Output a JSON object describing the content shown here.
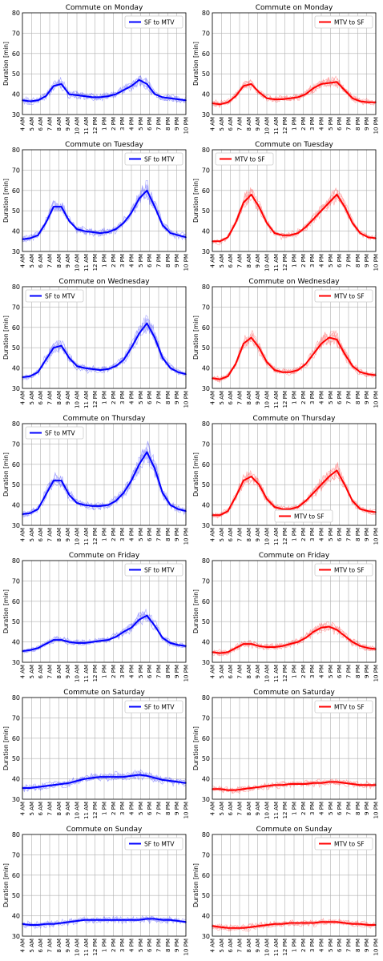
{
  "chart_data": [
    {
      "type": "line",
      "title": "Commute on Monday",
      "ylabel": "Duration [min]",
      "ylim": [
        30,
        80
      ],
      "legend": "top-right",
      "series": [
        {
          "name": "SF to MTV",
          "color": "#0000ff",
          "values": [
            37,
            36.5,
            37,
            39,
            44,
            45,
            40,
            39.5,
            39,
            38.5,
            38.5,
            39,
            40,
            42,
            44,
            47,
            45,
            40,
            38.5,
            38,
            37.5,
            37
          ]
        }
      ]
    },
    {
      "type": "line",
      "title": "Commute on Monday",
      "ylabel": "Duration [min]",
      "ylim": [
        30,
        80
      ],
      "legend": "top-right",
      "series": [
        {
          "name": "MTV to SF",
          "color": "#ff0000",
          "values": [
            35.5,
            35,
            36,
            39,
            44,
            45,
            41,
            38,
            37.5,
            37.5,
            38,
            38.5,
            40,
            43,
            45,
            45.5,
            46,
            42,
            38,
            36.5,
            36,
            36
          ]
        }
      ]
    },
    {
      "type": "line",
      "title": "Commute on Tuesday",
      "ylabel": "Duration [min]",
      "ylim": [
        30,
        80
      ],
      "legend": "top-right",
      "series": [
        {
          "name": "SF to MTV",
          "color": "#0000ff",
          "values": [
            36,
            36.5,
            38,
            44,
            52,
            52,
            45,
            41,
            40,
            39.5,
            39,
            39.5,
            41,
            44,
            49,
            56,
            60,
            52,
            43,
            39,
            38,
            37
          ]
        }
      ]
    },
    {
      "type": "line",
      "title": "Commute on Tuesday",
      "ylabel": "Duration [min]",
      "ylim": [
        30,
        80
      ],
      "legend": "top-left",
      "series": [
        {
          "name": "MTV to SF",
          "color": "#ff0000",
          "values": [
            35,
            35,
            37,
            44,
            54,
            58,
            52,
            44,
            39,
            38,
            38,
            39,
            42,
            46,
            50,
            54,
            58,
            52,
            44,
            39,
            37,
            36.5
          ]
        }
      ]
    },
    {
      "type": "line",
      "title": "Commute on Wednesday",
      "ylabel": "Duration [min]",
      "ylim": [
        30,
        80
      ],
      "legend": "top-left",
      "series": [
        {
          "name": "SF to MTV",
          "color": "#0000ff",
          "values": [
            35.5,
            36,
            38,
            44,
            50,
            51,
            45,
            41,
            40,
            39.5,
            39,
            39.5,
            41,
            44,
            50,
            57,
            62,
            55,
            45,
            40,
            38,
            37
          ]
        }
      ]
    },
    {
      "type": "line",
      "title": "Commute on Wednesday",
      "ylabel": "Duration [min]",
      "ylim": [
        30,
        80
      ],
      "legend": "top-right",
      "series": [
        {
          "name": "MTV to SF",
          "color": "#ff0000",
          "values": [
            35,
            34.5,
            36,
            42,
            52,
            55,
            50,
            43,
            39,
            38,
            38,
            39,
            42,
            47,
            52,
            55,
            54,
            47,
            41,
            38,
            37,
            36.5
          ]
        }
      ]
    },
    {
      "type": "line",
      "title": "Commute on Thursday",
      "ylabel": "Duration [min]",
      "ylim": [
        30,
        80
      ],
      "legend": "top-left",
      "series": [
        {
          "name": "SF to MTV",
          "color": "#0000ff",
          "values": [
            35.5,
            36,
            38,
            45,
            52,
            52,
            45,
            41,
            40,
            39.5,
            39.5,
            40,
            42,
            46,
            52,
            60,
            66,
            58,
            46,
            40,
            38,
            37
          ]
        }
      ]
    },
    {
      "type": "line",
      "title": "Commute on Thursday",
      "ylabel": "Duration [min]",
      "ylim": [
        30,
        80
      ],
      "legend": "bottom-center",
      "series": [
        {
          "name": "MTV to SF",
          "color": "#ff0000",
          "values": [
            35,
            35,
            37,
            44,
            52,
            54,
            50,
            43,
            39,
            38,
            38,
            39,
            42,
            46,
            50,
            54,
            57,
            50,
            42,
            38,
            37,
            36.5
          ]
        }
      ]
    },
    {
      "type": "line",
      "title": "Commute on Friday",
      "ylabel": "Duration [min]",
      "ylim": [
        30,
        80
      ],
      "legend": "top-right",
      "series": [
        {
          "name": "SF to MTV",
          "color": "#0000ff",
          "values": [
            35.5,
            36,
            37,
            39,
            41,
            41,
            40,
            39.5,
            39.5,
            40,
            40.5,
            41,
            42.5,
            45,
            47,
            51,
            53,
            48,
            42,
            39.5,
            38.5,
            38
          ]
        }
      ]
    },
    {
      "type": "line",
      "title": "Commute on Friday",
      "ylabel": "Duration [min]",
      "ylim": [
        30,
        80
      ],
      "legend": "top-right",
      "series": [
        {
          "name": "MTV to SF",
          "color": "#ff0000",
          "values": [
            35,
            34.5,
            35,
            37,
            39,
            39,
            38,
            37.5,
            37.5,
            38,
            39,
            40,
            42,
            45,
            47,
            47.5,
            46,
            43,
            40,
            38,
            37,
            36.5
          ]
        }
      ]
    },
    {
      "type": "line",
      "title": "Commute on Saturday",
      "ylabel": "Duration [min]",
      "ylim": [
        30,
        80
      ],
      "legend": "top-right",
      "series": [
        {
          "name": "SF to MTV",
          "color": "#0000ff",
          "values": [
            35.5,
            35.5,
            36,
            36.5,
            37,
            37.5,
            38,
            39,
            40,
            40.5,
            41,
            41,
            41,
            41,
            41.5,
            42,
            41.5,
            40.5,
            39.5,
            39,
            38.5,
            38
          ]
        }
      ]
    },
    {
      "type": "line",
      "title": "Commute on Saturday",
      "ylabel": "Duration [min]",
      "ylim": [
        30,
        80
      ],
      "legend": "top-right",
      "series": [
        {
          "name": "MTV to SF",
          "color": "#ff0000",
          "values": [
            35,
            35,
            34.5,
            34.5,
            35,
            35.5,
            36,
            36.5,
            37,
            37,
            37.5,
            37.5,
            37.5,
            38,
            38,
            38.5,
            38.5,
            38,
            37.5,
            37,
            37,
            37
          ]
        }
      ]
    },
    {
      "type": "line",
      "title": "Commute on Sunday",
      "ylabel": "Duration [min]",
      "ylim": [
        30,
        80
      ],
      "legend": "top-right",
      "series": [
        {
          "name": "SF to MTV",
          "color": "#0000ff",
          "values": [
            36,
            35.5,
            35.5,
            36,
            36,
            36.5,
            37,
            37.5,
            38,
            38,
            38,
            38,
            38,
            38,
            38,
            38,
            38.5,
            38.5,
            38,
            38,
            37.5,
            37
          ]
        }
      ]
    },
    {
      "type": "line",
      "title": "Commute on Sunday",
      "ylabel": "Duration [min]",
      "ylim": [
        30,
        80
      ],
      "legend": "top-right",
      "series": [
        {
          "name": "MTV to SF",
          "color": "#ff0000",
          "values": [
            35,
            34.5,
            34,
            34,
            34,
            34.5,
            35,
            35.5,
            36,
            36,
            36.5,
            36.5,
            36.5,
            36.5,
            37,
            37,
            37,
            36.5,
            36,
            36,
            35.5,
            35.5
          ]
        }
      ]
    }
  ],
  "x_ticks": [
    "4 AM",
    "5 AM",
    "6 AM",
    "7 AM",
    "8 AM",
    "9 AM",
    "10 AM",
    "11 AM",
    "12 PM",
    "1 PM",
    "2 PM",
    "3 PM",
    "4 PM",
    "5 PM",
    "6 PM",
    "7 PM",
    "8 PM",
    "9 PM",
    "10 PM"
  ],
  "y_ticks": [
    30,
    40,
    50,
    60,
    70,
    80
  ]
}
